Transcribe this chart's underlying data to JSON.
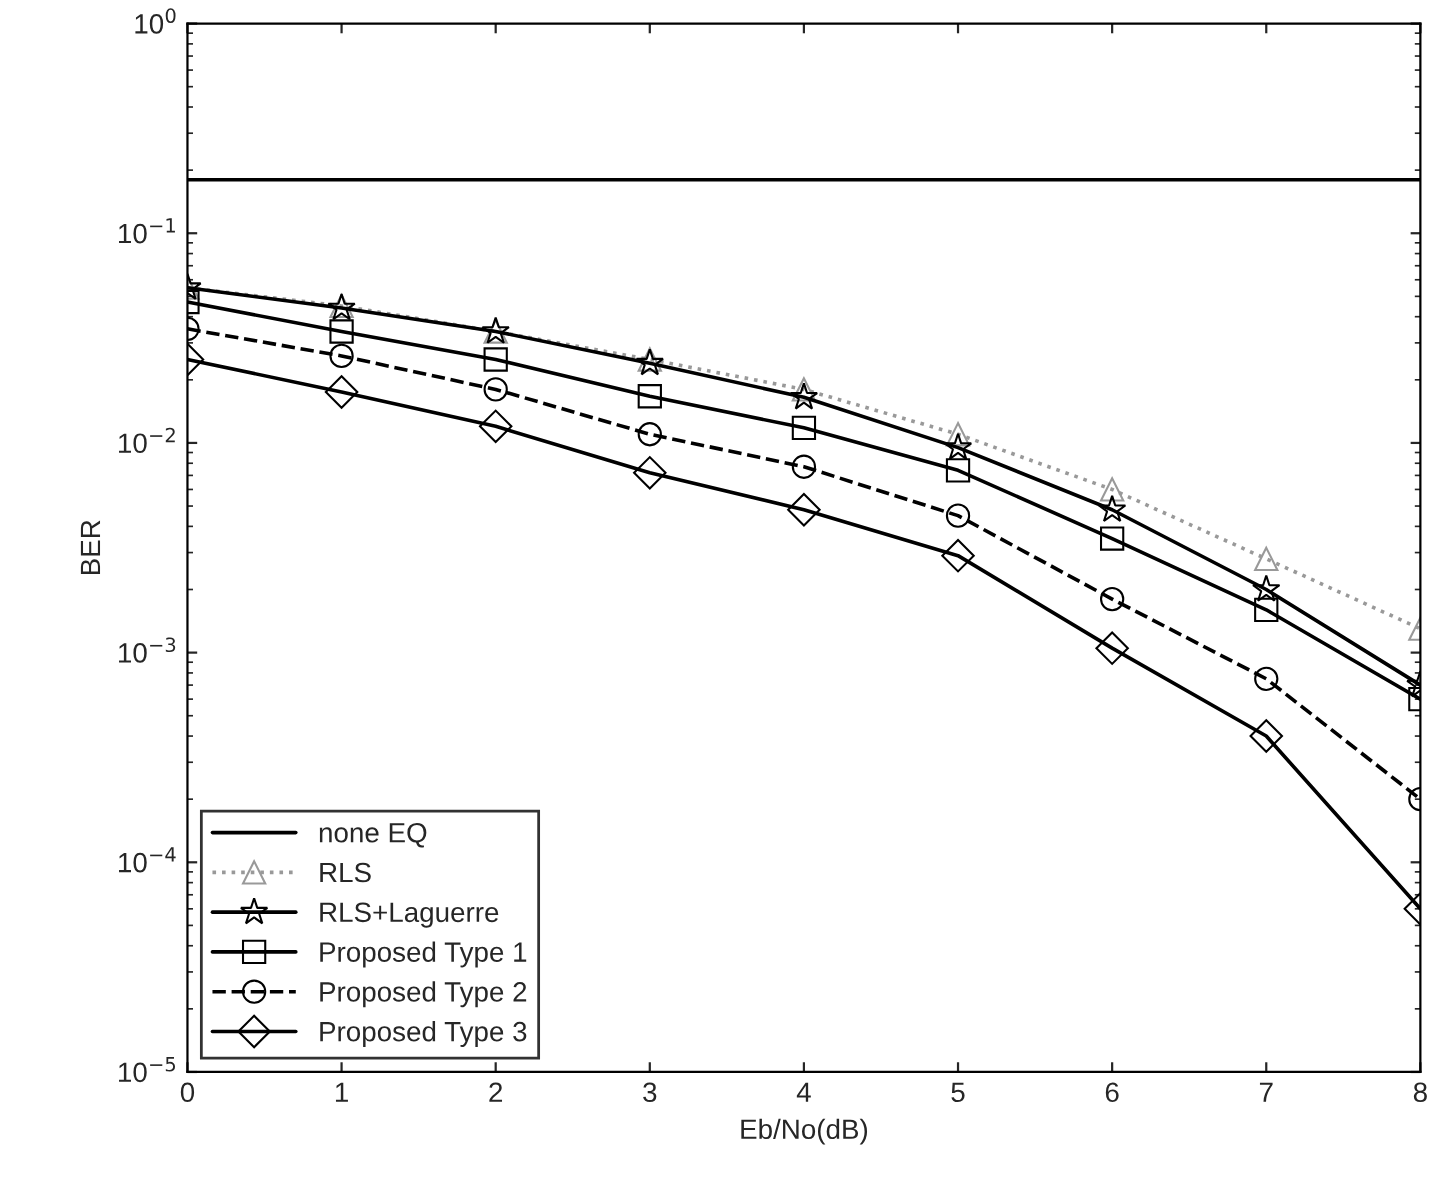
{
  "chart_data": {
    "type": "line",
    "xlabel": "Eb/No(dB)",
    "ylabel": "BER",
    "log": "y",
    "x": [
      0,
      1,
      2,
      3,
      4,
      5,
      6,
      7,
      8
    ],
    "xlim": [
      0,
      8
    ],
    "xticks": [
      0,
      1,
      2,
      3,
      4,
      5,
      6,
      7,
      8
    ],
    "ylim": [
      1e-05,
      1
    ],
    "yticks": [
      {
        "value": 1e-05,
        "label": "10$^{−5}$"
      },
      {
        "value": 0.0001,
        "label": "10$^{−4}$"
      },
      {
        "value": 0.001,
        "label": "10$^{−3}$"
      },
      {
        "value": 0.01,
        "label": "10$^{−2}$"
      },
      {
        "value": 0.1,
        "label": "10$^{−1}$"
      },
      {
        "value": 1,
        "label": "10$^{0}$"
      }
    ],
    "grid": false,
    "legend": "bottom left",
    "series": [
      {
        "name": "none EQ",
        "color": "#000000",
        "marker": "none",
        "line_style": "solid",
        "values": [
          0.18,
          0.18,
          0.18,
          0.18,
          0.18,
          0.18,
          0.18,
          0.18,
          0.18
        ]
      },
      {
        "name": "RLS",
        "color": "#999999",
        "marker": "triangle",
        "line_style": "dotted",
        "values": [
          0.055,
          0.045,
          0.034,
          0.025,
          0.018,
          0.011,
          0.006,
          0.0028,
          0.0013
        ]
      },
      {
        "name": "RLS+Laguerre",
        "color": "#000000",
        "marker": "star",
        "line_style": "solid",
        "values": [
          0.055,
          0.044,
          0.034,
          0.024,
          0.0165,
          0.0095,
          0.0048,
          0.002,
          0.0007
        ]
      },
      {
        "name": "Proposed Type 1",
        "color": "#000000",
        "marker": "square",
        "line_style": "solid",
        "values": [
          0.047,
          0.034,
          0.025,
          0.0167,
          0.0118,
          0.0074,
          0.0035,
          0.0016,
          0.0006
        ]
      },
      {
        "name": "Proposed Type 2",
        "color": "#000000",
        "marker": "circle",
        "line_style": "dashed",
        "values": [
          0.035,
          0.026,
          0.018,
          0.011,
          0.0077,
          0.0045,
          0.0018,
          0.00075,
          0.0002
        ]
      },
      {
        "name": "Proposed Type 3",
        "color": "#000000",
        "marker": "diamond",
        "line_style": "solid",
        "values": [
          0.025,
          0.0175,
          0.012,
          0.0072,
          0.0048,
          0.0029,
          0.00105,
          0.0004,
          6e-05
        ]
      }
    ]
  }
}
